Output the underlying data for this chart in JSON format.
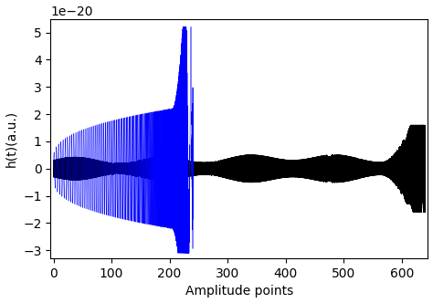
{
  "xlabel": "Amplitude points",
  "ylabel": "h(t)(a.u.)",
  "ylim": [
    -3.3,
    5.5
  ],
  "xlim": [
    -5,
    645
  ],
  "scale_factor": 1e-20,
  "blue_end": 240,
  "black_end": 640,
  "blue_color": "blue",
  "black_color": "black",
  "figsize": [
    4.74,
    3.32
  ],
  "dpi": 100,
  "yticks": [
    -3,
    -2,
    -1,
    0,
    1,
    2,
    3,
    4,
    5
  ],
  "xticks": [
    0,
    100,
    200,
    300,
    400,
    500,
    600
  ]
}
